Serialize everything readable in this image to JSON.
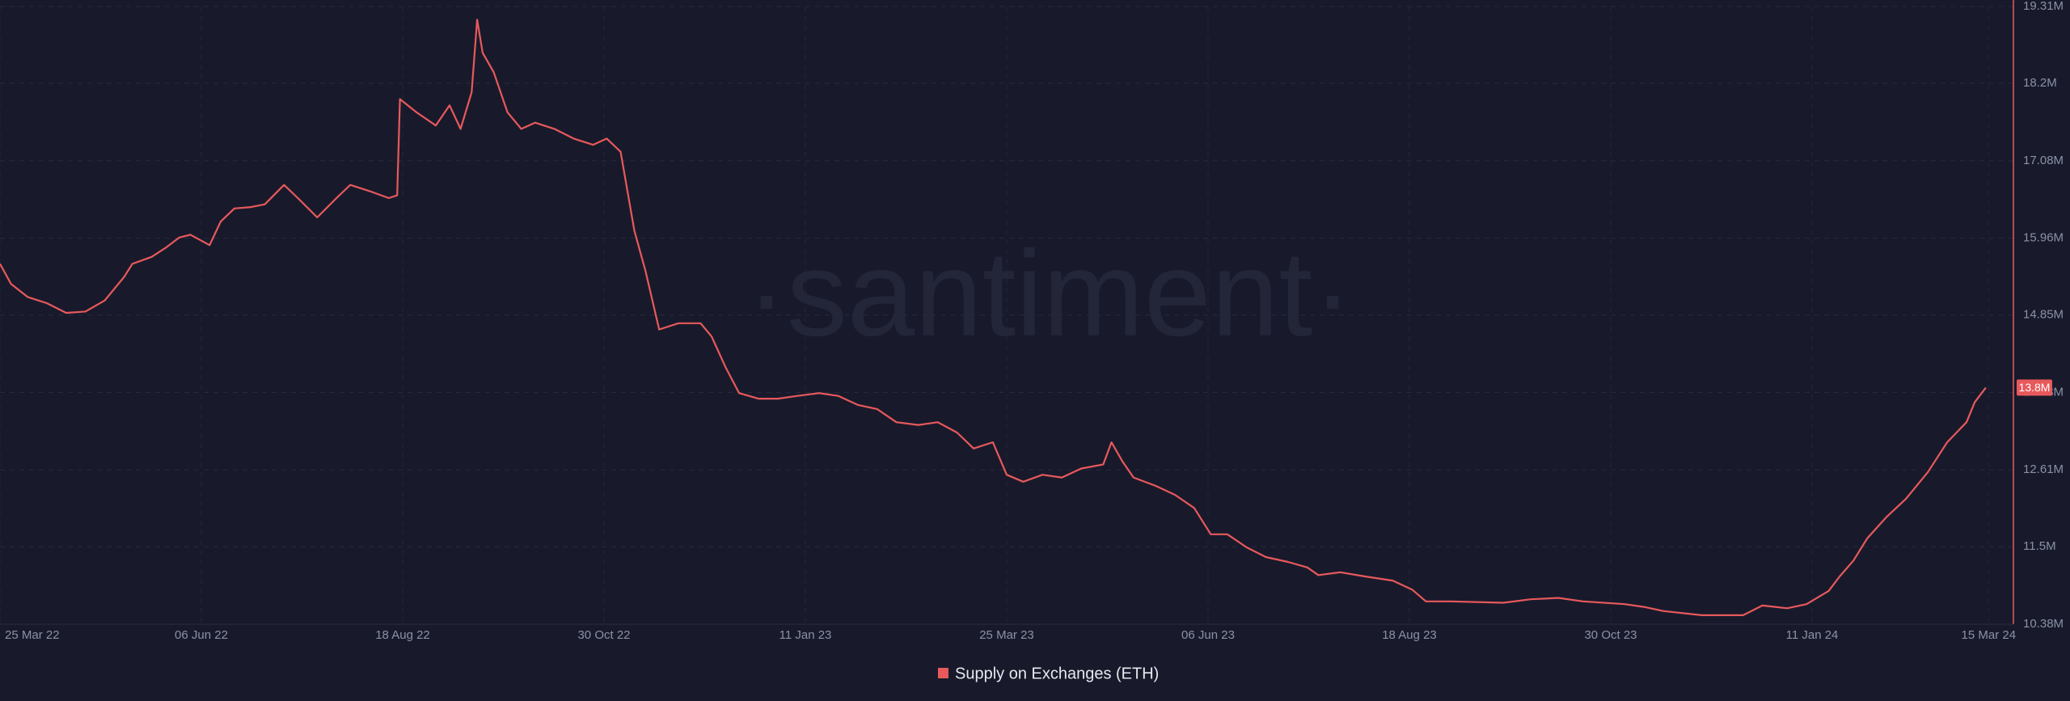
{
  "chart_data": {
    "type": "line",
    "watermark": "·santiment·",
    "x": [
      "2022-03-25",
      "2022-03-29",
      "2022-04-04",
      "2022-04-11",
      "2022-04-18",
      "2022-04-25",
      "2022-05-02",
      "2022-05-09",
      "2022-05-12",
      "2022-05-19",
      "2022-05-24",
      "2022-05-29",
      "2022-06-02",
      "2022-06-09",
      "2022-06-13",
      "2022-06-18",
      "2022-06-24",
      "2022-06-29",
      "2022-07-06",
      "2022-07-11",
      "2022-07-18",
      "2022-07-25",
      "2022-07-30",
      "2022-08-06",
      "2022-08-13",
      "2022-08-16",
      "2022-08-17",
      "2022-08-23",
      "2022-08-30",
      "2022-09-04",
      "2022-09-08",
      "2022-09-12",
      "2022-09-14",
      "2022-09-16",
      "2022-09-20",
      "2022-09-25",
      "2022-09-30",
      "2022-10-05",
      "2022-10-12",
      "2022-10-19",
      "2022-10-26",
      "2022-10-31",
      "2022-11-05",
      "2022-11-10",
      "2022-11-14",
      "2022-11-19",
      "2022-11-26",
      "2022-12-04",
      "2022-12-08",
      "2022-12-13",
      "2022-12-18",
      "2022-12-25",
      "2023-01-01",
      "2023-01-08",
      "2023-01-16",
      "2023-01-23",
      "2023-01-30",
      "2023-02-06",
      "2023-02-13",
      "2023-02-21",
      "2023-02-28",
      "2023-03-07",
      "2023-03-13",
      "2023-03-20",
      "2023-03-25",
      "2023-03-31",
      "2023-04-07",
      "2023-04-14",
      "2023-04-21",
      "2023-04-29",
      "2023-05-02",
      "2023-05-06",
      "2023-05-10",
      "2023-05-18",
      "2023-05-25",
      "2023-06-01",
      "2023-06-07",
      "2023-06-13",
      "2023-06-20",
      "2023-06-27",
      "2023-07-05",
      "2023-07-12",
      "2023-07-16",
      "2023-07-24",
      "2023-08-02",
      "2023-08-12",
      "2023-08-19",
      "2023-08-24",
      "2023-09-02",
      "2023-09-21",
      "2023-10-01",
      "2023-10-11",
      "2023-10-20",
      "2023-11-04",
      "2023-11-11",
      "2023-11-18",
      "2023-12-02",
      "2023-12-17",
      "2023-12-24",
      "2024-01-02",
      "2024-01-09",
      "2024-01-17",
      "2024-01-21",
      "2024-01-26",
      "2024-01-31",
      "2024-02-07",
      "2024-02-14",
      "2024-02-22",
      "2024-02-29",
      "2024-03-07",
      "2024-03-10",
      "2024-03-14"
    ],
    "series": [
      {
        "name": "Supply on Exchanges (ETH)",
        "color": "#e8595c",
        "values": [
          15590000,
          15300000,
          15110000,
          15020000,
          14880000,
          14900000,
          15060000,
          15400000,
          15590000,
          15690000,
          15820000,
          15970000,
          16010000,
          15860000,
          16200000,
          16390000,
          16410000,
          16450000,
          16730000,
          16540000,
          16260000,
          16540000,
          16730000,
          16640000,
          16540000,
          16580000,
          17970000,
          17780000,
          17590000,
          17880000,
          17540000,
          18070000,
          19120000,
          18640000,
          18360000,
          17780000,
          17540000,
          17630000,
          17540000,
          17400000,
          17310000,
          17400000,
          17210000,
          16070000,
          15490000,
          14640000,
          14730000,
          14730000,
          14540000,
          14100000,
          13720000,
          13640000,
          13640000,
          13680000,
          13720000,
          13680000,
          13550000,
          13490000,
          13300000,
          13260000,
          13300000,
          13150000,
          12920000,
          13010000,
          12540000,
          12440000,
          12540000,
          12500000,
          12630000,
          12690000,
          13010000,
          12730000,
          12500000,
          12380000,
          12250000,
          12060000,
          11680000,
          11680000,
          11490000,
          11350000,
          11280000,
          11200000,
          11090000,
          11130000,
          11070000,
          11010000,
          10880000,
          10710000,
          10710000,
          10690000,
          10740000,
          10760000,
          10710000,
          10670000,
          10630000,
          10570000,
          10510000,
          10510000,
          10650000,
          10610000,
          10670000,
          10860000,
          11070000,
          11300000,
          11620000,
          11930000,
          12190000,
          12580000,
          13010000,
          13300000,
          13590000,
          13800000
        ],
        "value_labels": [
          null,
          null,
          null,
          null,
          null,
          null,
          null,
          null,
          null,
          null,
          null,
          null,
          null,
          null,
          null,
          null,
          null,
          null,
          null,
          null,
          null,
          null,
          null,
          null,
          null,
          null,
          null,
          null,
          null,
          null,
          null,
          null,
          null,
          null,
          null,
          null,
          null,
          null,
          null,
          null,
          null,
          null,
          null,
          null,
          null,
          null,
          null,
          null,
          null,
          null,
          null,
          null,
          null,
          null,
          null,
          null,
          null,
          null,
          null,
          null,
          null,
          null,
          null,
          null,
          null,
          null,
          null,
          null,
          null,
          null,
          null,
          null,
          null,
          null,
          null,
          null,
          null,
          null,
          null,
          null,
          null,
          null,
          null,
          null,
          null,
          null,
          null,
          null,
          null,
          null,
          null,
          null,
          null,
          null,
          null,
          null,
          null,
          null,
          null,
          null,
          null,
          null,
          null,
          null,
          null,
          null,
          null,
          null,
          null,
          null,
          null,
          "13.8M"
        ]
      }
    ],
    "xlim": [
      "2022-03-25",
      "2024-03-24"
    ],
    "xticks": [
      {
        "value": "2022-03-25",
        "label": "25 Mar 22"
      },
      {
        "value": "2022-06-06",
        "label": "06 Jun 22"
      },
      {
        "value": "2022-08-18",
        "label": "18 Aug 22"
      },
      {
        "value": "2022-10-30",
        "label": "30 Oct 22"
      },
      {
        "value": "2023-01-11",
        "label": "11 Jan 23"
      },
      {
        "value": "2023-03-25",
        "label": "25 Mar 23"
      },
      {
        "value": "2023-06-06",
        "label": "06 Jun 23"
      },
      {
        "value": "2023-08-18",
        "label": "18 Aug 23"
      },
      {
        "value": "2023-10-30",
        "label": "30 Oct 23"
      },
      {
        "value": "2024-01-11",
        "label": "11 Jan 24"
      },
      {
        "value": "2024-03-15",
        "label": "15 Mar 24"
      }
    ],
    "ylim": [
      10380000,
      19310000
    ],
    "yticks": [
      {
        "value": 10380000,
        "label": "10.38M"
      },
      {
        "value": 11500000,
        "label": "11.5M"
      },
      {
        "value": 12610000,
        "label": "12.61M"
      },
      {
        "value": 13730000,
        "label": "13.73M"
      },
      {
        "value": 14850000,
        "label": "14.85M"
      },
      {
        "value": 15960000,
        "label": "15.96M"
      },
      {
        "value": 17080000,
        "label": "17.08M"
      },
      {
        "value": 18200000,
        "label": "18.2M"
      },
      {
        "value": 19310000,
        "label": "19.31M"
      }
    ],
    "grid": true,
    "legend": "bottom"
  }
}
